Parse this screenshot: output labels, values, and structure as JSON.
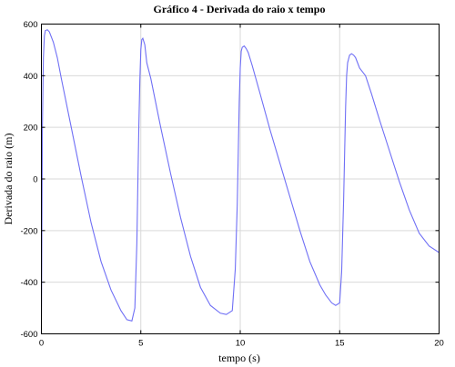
{
  "chart_data": {
    "type": "line",
    "title": "Gráfico 4 - Derivada do raio x tempo",
    "xlabel": "tempo (s)",
    "ylabel": "Derivada do raio (m)",
    "xlim": [
      0,
      20
    ],
    "ylim": [
      -600,
      600
    ],
    "xticks": [
      "0",
      "5",
      "10",
      "15",
      "20"
    ],
    "yticks": [
      "-600",
      "-400",
      "-200",
      "0",
      "200",
      "400",
      "600"
    ],
    "grid": true,
    "color": "#6f6ff5",
    "series": [
      {
        "x": [
          0.0,
          0.05,
          0.1,
          0.15,
          0.2,
          0.3,
          0.4,
          0.6,
          0.8,
          1.0,
          1.5,
          2.0,
          2.5,
          3.0,
          3.5,
          4.0,
          4.3,
          4.55,
          4.7,
          4.8,
          4.85,
          4.9,
          4.95,
          5.0,
          5.05,
          5.1,
          5.2,
          5.3,
          5.5,
          6.0,
          6.5,
          7.0,
          7.5,
          8.0,
          8.5,
          9.0,
          9.3,
          9.6,
          9.75,
          9.85,
          9.9,
          9.95,
          10.0,
          10.05,
          10.1,
          10.2,
          10.3,
          10.4,
          10.6,
          11.0,
          11.5,
          12.0,
          12.5,
          13.0,
          13.5,
          14.0,
          14.3,
          14.6,
          14.8,
          15.0,
          15.1,
          15.2,
          15.25,
          15.3,
          15.35,
          15.4,
          15.5,
          15.6,
          15.7,
          15.8,
          15.9,
          16.0,
          16.3,
          16.6,
          17.0,
          17.5,
          18.0,
          18.5,
          19.0,
          19.5,
          20.0
        ],
        "y": [
          -600,
          200,
          470,
          555,
          575,
          578,
          570,
          530,
          470,
          390,
          200,
          10,
          -170,
          -320,
          -430,
          -510,
          -545,
          -550,
          -500,
          -250,
          -20,
          200,
          380,
          500,
          540,
          545,
          520,
          450,
          390,
          200,
          20,
          -150,
          -300,
          -420,
          -490,
          -520,
          -525,
          -510,
          -350,
          -100,
          100,
          300,
          430,
          495,
          510,
          515,
          505,
          490,
          440,
          330,
          190,
          60,
          -70,
          -200,
          -320,
          -410,
          -450,
          -480,
          -490,
          -480,
          -360,
          -80,
          100,
          280,
          400,
          450,
          480,
          485,
          480,
          470,
          450,
          430,
          400,
          330,
          230,
          110,
          -10,
          -120,
          -210,
          -260,
          -285
        ]
      }
    ]
  }
}
